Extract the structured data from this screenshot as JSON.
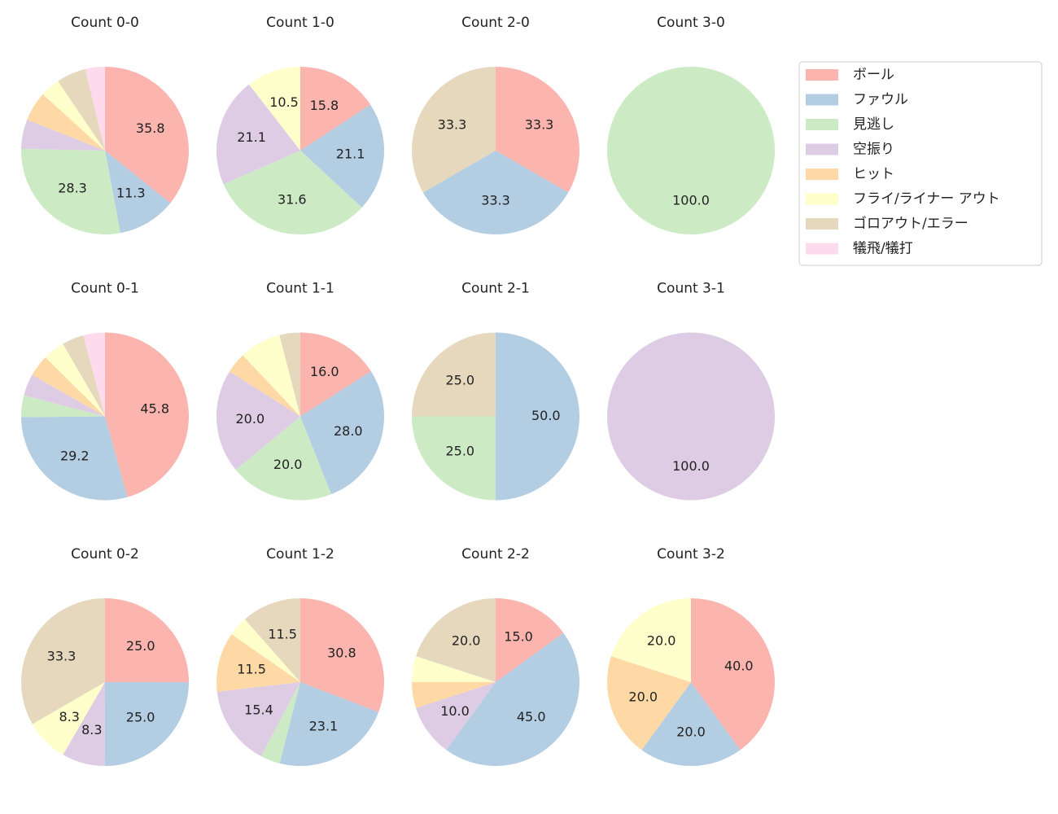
{
  "chart_data": [
    {
      "type": "pie",
      "title": "Count 0-0",
      "categories": [
        "ボール",
        "ファウル",
        "見逃し",
        "空振り",
        "ヒット",
        "フライ/ライナー アウト",
        "ゴロアウト/エラー",
        "犠飛/犠打"
      ],
      "colors": [
        "#fbb4ae",
        "#b3cde3",
        "#ccebc5",
        "#decbe4",
        "#fed9a6",
        "#ffffcc",
        "#e5d8bd",
        "#fddaec"
      ],
      "values": [
        35.8,
        11.3,
        28.3,
        5.7,
        5.7,
        3.8,
        5.7,
        3.8
      ],
      "value_labels": [
        "35.8",
        "11.3",
        "28.3",
        null,
        null,
        null,
        null,
        null
      ]
    },
    {
      "type": "pie",
      "title": "Count 1-0",
      "categories": [
        "ボール",
        "ファウル",
        "見逃し",
        "空振り",
        "ヒット",
        "フライ/ライナー アウト",
        "ゴロアウト/エラー",
        "犠飛/犠打"
      ],
      "colors": [
        "#fbb4ae",
        "#b3cde3",
        "#ccebc5",
        "#decbe4",
        "#fed9a6",
        "#ffffcc",
        "#e5d8bd",
        "#fddaec"
      ],
      "values": [
        15.8,
        21.1,
        31.6,
        21.1,
        0,
        10.5,
        0,
        0
      ],
      "value_labels": [
        "15.8",
        "21.1",
        "31.6",
        "21.1",
        null,
        "10.5",
        null,
        null
      ]
    },
    {
      "type": "pie",
      "title": "Count 2-0",
      "categories": [
        "ボール",
        "ファウル",
        "見逃し",
        "空振り",
        "ヒット",
        "フライ/ライナー アウト",
        "ゴロアウト/エラー",
        "犠飛/犠打"
      ],
      "colors": [
        "#fbb4ae",
        "#b3cde3",
        "#ccebc5",
        "#decbe4",
        "#fed9a6",
        "#ffffcc",
        "#e5d8bd",
        "#fddaec"
      ],
      "values": [
        33.3,
        33.3,
        0,
        0,
        0,
        0,
        33.3,
        0
      ],
      "value_labels": [
        "33.3",
        "33.3",
        null,
        null,
        null,
        null,
        "33.3",
        null
      ]
    },
    {
      "type": "pie",
      "title": "Count 3-0",
      "categories": [
        "ボール",
        "ファウル",
        "見逃し",
        "空振り",
        "ヒット",
        "フライ/ライナー アウト",
        "ゴロアウト/エラー",
        "犠飛/犠打"
      ],
      "colors": [
        "#fbb4ae",
        "#b3cde3",
        "#ccebc5",
        "#decbe4",
        "#fed9a6",
        "#ffffcc",
        "#e5d8bd",
        "#fddaec"
      ],
      "values": [
        0,
        0,
        100,
        0,
        0,
        0,
        0,
        0
      ],
      "value_labels": [
        null,
        null,
        "100.0",
        null,
        null,
        null,
        null,
        null
      ]
    },
    {
      "type": "pie",
      "title": "Count 0-1",
      "categories": [
        "ボール",
        "ファウル",
        "見逃し",
        "空振り",
        "ヒット",
        "フライ/ライナー アウト",
        "ゴロアウト/エラー",
        "犠飛/犠打"
      ],
      "colors": [
        "#fbb4ae",
        "#b3cde3",
        "#ccebc5",
        "#decbe4",
        "#fed9a6",
        "#ffffcc",
        "#e5d8bd",
        "#fddaec"
      ],
      "values": [
        45.8,
        29.2,
        4.2,
        4.2,
        4.2,
        4.2,
        4.2,
        4.2
      ],
      "value_labels": [
        "45.8",
        "29.2",
        null,
        null,
        null,
        null,
        null,
        null
      ]
    },
    {
      "type": "pie",
      "title": "Count 1-1",
      "categories": [
        "ボール",
        "ファウル",
        "見逃し",
        "空振り",
        "ヒット",
        "フライ/ライナー アウト",
        "ゴロアウト/エラー",
        "犠飛/犠打"
      ],
      "colors": [
        "#fbb4ae",
        "#b3cde3",
        "#ccebc5",
        "#decbe4",
        "#fed9a6",
        "#ffffcc",
        "#e5d8bd",
        "#fddaec"
      ],
      "values": [
        16.0,
        28.0,
        20.0,
        20.0,
        4.0,
        8.0,
        4.0,
        0
      ],
      "value_labels": [
        "16.0",
        "28.0",
        "20.0",
        "20.0",
        null,
        null,
        null,
        null
      ]
    },
    {
      "type": "pie",
      "title": "Count 2-1",
      "categories": [
        "ボール",
        "ファウル",
        "見逃し",
        "空振り",
        "ヒット",
        "フライ/ライナー アウト",
        "ゴロアウト/エラー",
        "犠飛/犠打"
      ],
      "colors": [
        "#fbb4ae",
        "#b3cde3",
        "#ccebc5",
        "#decbe4",
        "#fed9a6",
        "#ffffcc",
        "#e5d8bd",
        "#fddaec"
      ],
      "values": [
        0,
        50.0,
        25.0,
        0,
        0,
        0,
        25.0,
        0
      ],
      "value_labels": [
        null,
        "50.0",
        "25.0",
        null,
        null,
        null,
        "25.0",
        null
      ]
    },
    {
      "type": "pie",
      "title": "Count 3-1",
      "categories": [
        "ボール",
        "ファウル",
        "見逃し",
        "空振り",
        "ヒット",
        "フライ/ライナー アウト",
        "ゴロアウト/エラー",
        "犠飛/犠打"
      ],
      "colors": [
        "#fbb4ae",
        "#b3cde3",
        "#ccebc5",
        "#decbe4",
        "#fed9a6",
        "#ffffcc",
        "#e5d8bd",
        "#fddaec"
      ],
      "values": [
        0,
        0,
        0,
        100,
        0,
        0,
        0,
        0
      ],
      "value_labels": [
        null,
        null,
        null,
        "100.0",
        null,
        null,
        null,
        null
      ]
    },
    {
      "type": "pie",
      "title": "Count 0-2",
      "categories": [
        "ボール",
        "ファウル",
        "見逃し",
        "空振り",
        "ヒット",
        "フライ/ライナー アウト",
        "ゴロアウト/エラー",
        "犠飛/犠打"
      ],
      "colors": [
        "#fbb4ae",
        "#b3cde3",
        "#ccebc5",
        "#decbe4",
        "#fed9a6",
        "#ffffcc",
        "#e5d8bd",
        "#fddaec"
      ],
      "values": [
        25.0,
        25.0,
        0,
        8.3,
        0,
        8.3,
        33.3,
        0
      ],
      "value_labels": [
        "25.0",
        "25.0",
        null,
        "8.3",
        null,
        "8.3",
        "33.3",
        null
      ]
    },
    {
      "type": "pie",
      "title": "Count 1-2",
      "categories": [
        "ボール",
        "ファウル",
        "見逃し",
        "空振り",
        "ヒット",
        "フライ/ライナー アウト",
        "ゴロアウト/エラー",
        "犠飛/犠打"
      ],
      "colors": [
        "#fbb4ae",
        "#b3cde3",
        "#ccebc5",
        "#decbe4",
        "#fed9a6",
        "#ffffcc",
        "#e5d8bd",
        "#fddaec"
      ],
      "values": [
        30.8,
        23.1,
        3.8,
        15.4,
        11.5,
        3.8,
        11.5,
        0
      ],
      "value_labels": [
        "30.8",
        "23.1",
        null,
        "15.4",
        "11.5",
        null,
        "11.5",
        null
      ]
    },
    {
      "type": "pie",
      "title": "Count 2-2",
      "categories": [
        "ボール",
        "ファウル",
        "見逃し",
        "空振り",
        "ヒット",
        "フライ/ライナー アウト",
        "ゴロアウト/エラー",
        "犠飛/犠打"
      ],
      "colors": [
        "#fbb4ae",
        "#b3cde3",
        "#ccebc5",
        "#decbe4",
        "#fed9a6",
        "#ffffcc",
        "#e5d8bd",
        "#fddaec"
      ],
      "values": [
        15.0,
        45.0,
        0,
        10.0,
        5.0,
        5.0,
        20.0,
        0
      ],
      "value_labels": [
        "15.0",
        "45.0",
        null,
        "10.0",
        null,
        null,
        "20.0",
        null
      ]
    },
    {
      "type": "pie",
      "title": "Count 3-2",
      "categories": [
        "ボール",
        "ファウル",
        "見逃し",
        "空振り",
        "ヒット",
        "フライ/ライナー アウト",
        "ゴロアウト/エラー",
        "犠飛/犠打"
      ],
      "colors": [
        "#fbb4ae",
        "#b3cde3",
        "#ccebc5",
        "#decbe4",
        "#fed9a6",
        "#ffffcc",
        "#e5d8bd",
        "#fddaec"
      ],
      "values": [
        40.0,
        20.0,
        0,
        0,
        20.0,
        20.0,
        0,
        0
      ],
      "value_labels": [
        "40.0",
        "20.0",
        null,
        null,
        "20.0",
        "20.0",
        null,
        null
      ]
    }
  ]
}
